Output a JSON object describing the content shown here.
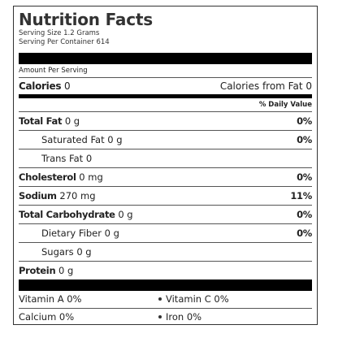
{
  "label": {
    "title": "Nutrition Facts",
    "serving_size": "Serving Size 1.2 Grams",
    "servings_per_container": "Serving Per Container 614",
    "amount_per_serving": "Amount Per Serving",
    "calories_label": "Calories",
    "calories_value": "0",
    "calories_from_fat": "Calories from Fat 0",
    "daily_value_header": "% Daily Value"
  },
  "nutrients": [
    {
      "name": "Total Fat",
      "amount": "0 g",
      "dv": "0%"
    },
    {
      "name": "Saturated Fat",
      "amount": "0 g",
      "dv": "0%"
    },
    {
      "name": "Trans Fat",
      "amount": "0",
      "dv": ""
    },
    {
      "name": "Cholesterol",
      "amount": "0 mg",
      "dv": "0%"
    },
    {
      "name": "Sodium",
      "amount": "270 mg",
      "dv": "11%"
    },
    {
      "name": "Total Carbohydrate",
      "amount": "0 g",
      "dv": "0%"
    },
    {
      "name": "Dietary Fiber",
      "amount": "0 g",
      "dv": "0%"
    },
    {
      "name": "Sugars",
      "amount": "0 g",
      "dv": ""
    },
    {
      "name": "Protein",
      "amount": "0 g",
      "dv": ""
    }
  ],
  "vitamins": {
    "vitamin_a": "Vitamin A 0%",
    "vitamin_c": "Vitamin C 0%",
    "calcium": "Calcium 0%",
    "iron": "Iron 0%"
  }
}
